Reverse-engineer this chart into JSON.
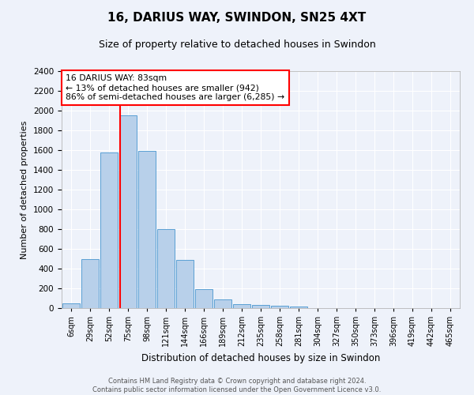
{
  "title": "16, DARIUS WAY, SWINDON, SN25 4XT",
  "subtitle": "Size of property relative to detached houses in Swindon",
  "xlabel": "Distribution of detached houses by size in Swindon",
  "ylabel": "Number of detached properties",
  "categories": [
    "6sqm",
    "29sqm",
    "52sqm",
    "75sqm",
    "98sqm",
    "121sqm",
    "144sqm",
    "166sqm",
    "189sqm",
    "212sqm",
    "235sqm",
    "258sqm",
    "281sqm",
    "304sqm",
    "327sqm",
    "350sqm",
    "373sqm",
    "396sqm",
    "419sqm",
    "442sqm",
    "465sqm"
  ],
  "bar_values": [
    50,
    500,
    1580,
    1950,
    1590,
    800,
    490,
    195,
    90,
    40,
    35,
    25,
    20,
    0,
    0,
    0,
    0,
    0,
    0,
    0,
    0
  ],
  "bar_color": "#b8d0ea",
  "bar_edge_color": "#5a9fd4",
  "background_color": "#eef2fa",
  "grid_color": "#ffffff",
  "vline_color": "red",
  "annotation_title": "16 DARIUS WAY: 83sqm",
  "annotation_line1": "← 13% of detached houses are smaller (942)",
  "annotation_line2": "86% of semi-detached houses are larger (6,285) →",
  "annotation_box_color": "#ffffff",
  "annotation_box_edge": "red",
  "ylim": [
    0,
    2400
  ],
  "yticks": [
    0,
    200,
    400,
    600,
    800,
    1000,
    1200,
    1400,
    1600,
    1800,
    2000,
    2200,
    2400
  ],
  "footer_line1": "Contains HM Land Registry data © Crown copyright and database right 2024.",
  "footer_line2": "Contains public sector information licensed under the Open Government Licence v3.0."
}
